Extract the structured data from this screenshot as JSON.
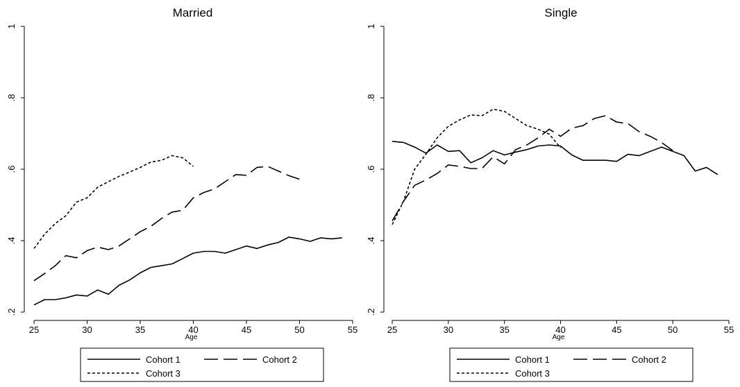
{
  "chart_data": [
    {
      "type": "line",
      "title": "Married",
      "xlabel": "Age",
      "ylabel": "",
      "xlim": [
        25,
        55
      ],
      "ylim": [
        0.2,
        1
      ],
      "xticks": [
        25,
        30,
        35,
        40,
        45,
        50,
        55
      ],
      "yticks": [
        0.2,
        0.4,
        0.6,
        0.8,
        1
      ],
      "ytick_labels": [
        ".2",
        ".4",
        ".6",
        ".8",
        "1"
      ],
      "grid": false,
      "legend": "bottom",
      "series": [
        {
          "name": "Cohort 1",
          "style": "solid",
          "x": [
            25,
            26,
            27,
            28,
            29,
            30,
            31,
            32,
            33,
            34,
            35,
            36,
            37,
            38,
            39,
            40,
            41,
            42,
            43,
            44,
            45,
            46,
            47,
            48,
            49,
            50,
            51,
            52,
            53,
            54
          ],
          "y": [
            0.22,
            0.235,
            0.235,
            0.24,
            0.248,
            0.245,
            0.262,
            0.25,
            0.275,
            0.29,
            0.31,
            0.325,
            0.33,
            0.335,
            0.35,
            0.365,
            0.37,
            0.37,
            0.365,
            0.375,
            0.385,
            0.378,
            0.388,
            0.395,
            0.41,
            0.405,
            0.398,
            0.408,
            0.405,
            0.408
          ]
        },
        {
          "name": "Cohort 2",
          "style": "longdash",
          "x": [
            25,
            26,
            27,
            28,
            29,
            30,
            31,
            32,
            33,
            34,
            35,
            36,
            37,
            38,
            39,
            40,
            41,
            42,
            43,
            44,
            45,
            46,
            47,
            48,
            49,
            50
          ],
          "y": [
            0.288,
            0.308,
            0.33,
            0.358,
            0.352,
            0.372,
            0.382,
            0.375,
            0.385,
            0.405,
            0.425,
            0.44,
            0.462,
            0.48,
            0.485,
            0.52,
            0.535,
            0.545,
            0.565,
            0.585,
            0.583,
            0.605,
            0.608,
            0.595,
            0.582,
            0.572
          ]
        },
        {
          "name": "Cohort 3",
          "style": "shortdash",
          "x": [
            25,
            26,
            27,
            28,
            29,
            30,
            31,
            32,
            33,
            34,
            35,
            36,
            37,
            38,
            39,
            40
          ],
          "y": [
            0.378,
            0.418,
            0.448,
            0.47,
            0.508,
            0.52,
            0.55,
            0.565,
            0.58,
            0.592,
            0.605,
            0.62,
            0.625,
            0.638,
            0.632,
            0.608
          ]
        }
      ]
    },
    {
      "type": "line",
      "title": "Single",
      "xlabel": "Age",
      "ylabel": "",
      "xlim": [
        25,
        55
      ],
      "ylim": [
        0.2,
        1
      ],
      "xticks": [
        25,
        30,
        35,
        40,
        45,
        50,
        55
      ],
      "yticks": [
        0.2,
        0.4,
        0.6,
        0.8,
        1
      ],
      "ytick_labels": [
        ".2",
        ".4",
        ".6",
        ".8",
        "1"
      ],
      "grid": false,
      "legend": "bottom",
      "series": [
        {
          "name": "Cohort 1",
          "style": "solid",
          "x": [
            25,
            26,
            27,
            28,
            29,
            30,
            31,
            32,
            33,
            34,
            35,
            36,
            37,
            38,
            39,
            40,
            41,
            42,
            43,
            44,
            45,
            46,
            47,
            48,
            49,
            50,
            51,
            52,
            53,
            54
          ],
          "y": [
            0.678,
            0.675,
            0.662,
            0.645,
            0.668,
            0.65,
            0.652,
            0.618,
            0.632,
            0.652,
            0.64,
            0.648,
            0.655,
            0.665,
            0.668,
            0.665,
            0.64,
            0.625,
            0.625,
            0.625,
            0.622,
            0.642,
            0.638,
            0.65,
            0.662,
            0.65,
            0.638,
            0.595,
            0.605,
            0.585
          ]
        },
        {
          "name": "Cohort 2",
          "style": "longdash",
          "x": [
            25,
            26,
            27,
            28,
            29,
            30,
            31,
            32,
            33,
            34,
            35,
            36,
            37,
            38,
            39,
            40,
            41,
            42,
            43,
            44,
            45,
            46,
            47,
            48,
            49,
            50
          ],
          "y": [
            0.455,
            0.51,
            0.555,
            0.57,
            0.588,
            0.612,
            0.608,
            0.602,
            0.602,
            0.635,
            0.615,
            0.655,
            0.668,
            0.688,
            0.712,
            0.692,
            0.715,
            0.722,
            0.742,
            0.75,
            0.732,
            0.728,
            0.705,
            0.692,
            0.675,
            0.652
          ]
        },
        {
          "name": "Cohort 3",
          "style": "shortdash",
          "x": [
            25,
            26,
            27,
            28,
            29,
            30,
            31,
            32,
            33,
            34,
            35,
            36,
            37,
            38,
            39,
            40
          ],
          "y": [
            0.445,
            0.51,
            0.6,
            0.642,
            0.688,
            0.72,
            0.738,
            0.752,
            0.75,
            0.768,
            0.762,
            0.742,
            0.722,
            0.712,
            0.698,
            0.66
          ]
        }
      ]
    }
  ]
}
